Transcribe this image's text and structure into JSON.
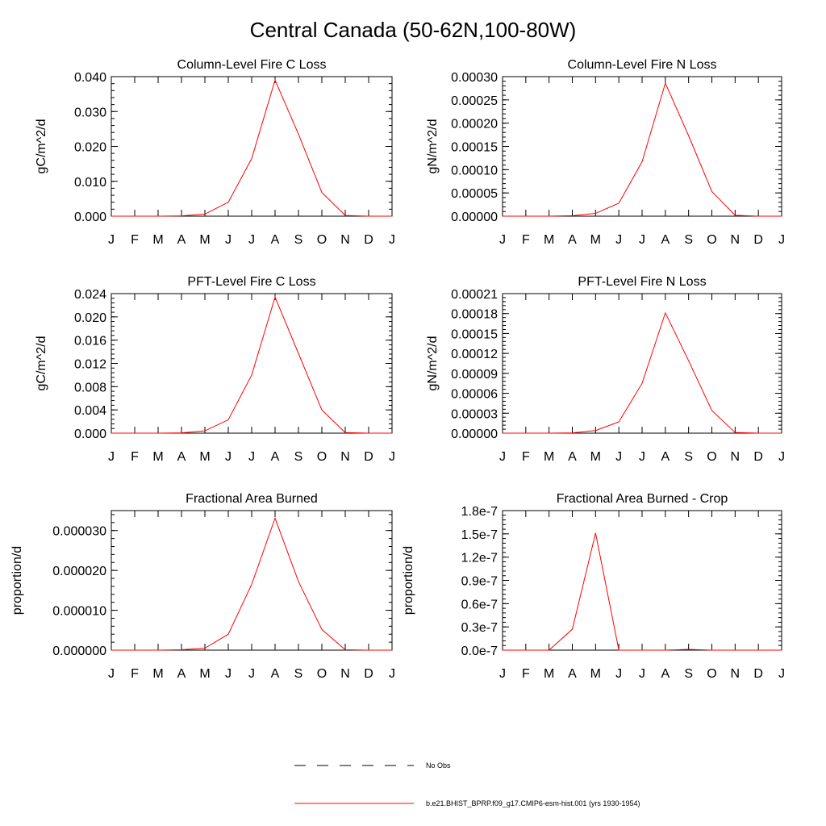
{
  "title": "Central Canada (50-62N,100-80W)",
  "months": [
    "J",
    "F",
    "M",
    "A",
    "M",
    "J",
    "J",
    "A",
    "S",
    "O",
    "N",
    "D",
    "J"
  ],
  "colors": {
    "model": "#ff0000",
    "obs": "#000000",
    "axis": "#000000"
  },
  "legend": {
    "obs_label": "No Obs",
    "model_label": "b.e21.BHIST_BPRP.f09_g17.CMIP6-esm-hist.001 (yrs 1930-1954)"
  },
  "chart_data": [
    {
      "type": "line",
      "title": "Column-Level Fire C Loss",
      "ylabel": "gC/m^2/d",
      "ylim": [
        0,
        0.04
      ],
      "yticks": [
        "0.000",
        "0.010",
        "0.020",
        "0.030",
        "0.040"
      ],
      "ytick_values": [
        0,
        0.01,
        0.02,
        0.03,
        0.04
      ],
      "x": [
        "J",
        "F",
        "M",
        "A",
        "M",
        "J",
        "J",
        "A",
        "S",
        "O",
        "N",
        "D",
        "J"
      ],
      "series": [
        {
          "name": "b.e21.BHIST_BPRP.f09_g17.CMIP6-esm-hist.001 (yrs 1930-1954)",
          "values": [
            0,
            0,
            0,
            0.0001,
            0.0006,
            0.004,
            0.0165,
            0.039,
            0.0235,
            0.0068,
            0.0002,
            0,
            0
          ]
        }
      ]
    },
    {
      "type": "line",
      "title": "Column-Level Fire N Loss",
      "ylabel": "gN/m^2/d",
      "ylim": [
        0,
        0.0003
      ],
      "yticks": [
        "0.00000",
        "0.00005",
        "0.00010",
        "0.00015",
        "0.00020",
        "0.00025",
        "0.00030"
      ],
      "ytick_values": [
        0,
        5e-05,
        0.0001,
        0.00015,
        0.0002,
        0.00025,
        0.0003
      ],
      "x": [
        "J",
        "F",
        "M",
        "A",
        "M",
        "J",
        "J",
        "A",
        "S",
        "O",
        "N",
        "D",
        "J"
      ],
      "series": [
        {
          "name": "b.e21.BHIST_BPRP.f09_g17.CMIP6-esm-hist.001 (yrs 1930-1954)",
          "values": [
            0,
            0,
            0,
            1e-06,
            6e-06,
            2.8e-05,
            0.000117,
            0.000286,
            0.000173,
            5.3e-05,
            2e-06,
            0,
            0
          ]
        }
      ]
    },
    {
      "type": "line",
      "title": "PFT-Level Fire C Loss",
      "ylabel": "gC/m^2/d",
      "ylim": [
        0,
        0.024
      ],
      "yticks": [
        "0.000",
        "0.004",
        "0.008",
        "0.012",
        "0.016",
        "0.020",
        "0.024"
      ],
      "ytick_values": [
        0,
        0.004,
        0.008,
        0.012,
        0.016,
        0.02,
        0.024
      ],
      "x": [
        "J",
        "F",
        "M",
        "A",
        "M",
        "J",
        "J",
        "A",
        "S",
        "O",
        "N",
        "D",
        "J"
      ],
      "series": [
        {
          "name": "b.e21.BHIST_BPRP.f09_g17.CMIP6-esm-hist.001 (yrs 1930-1954)",
          "values": [
            0,
            0,
            0,
            5e-05,
            0.0004,
            0.0023,
            0.01,
            0.0234,
            0.0137,
            0.004,
            0.0001,
            0,
            0
          ]
        }
      ]
    },
    {
      "type": "line",
      "title": "PFT-Level Fire N Loss",
      "ylabel": "gN/m^2/d",
      "ylim": [
        0,
        0.00021
      ],
      "yticks": [
        "0.00000",
        "0.00003",
        "0.00006",
        "0.00009",
        "0.00012",
        "0.00015",
        "0.00018",
        "0.00021"
      ],
      "ytick_values": [
        0,
        3e-05,
        6e-05,
        9e-05,
        0.00012,
        0.00015,
        0.00018,
        0.00021
      ],
      "x": [
        "J",
        "F",
        "M",
        "A",
        "M",
        "J",
        "J",
        "A",
        "S",
        "O",
        "N",
        "D",
        "J"
      ],
      "series": [
        {
          "name": "b.e21.BHIST_BPRP.f09_g17.CMIP6-esm-hist.001 (yrs 1930-1954)",
          "values": [
            0,
            0,
            0,
            5e-07,
            4e-06,
            1.7e-05,
            7.5e-05,
            0.000181,
            0.000109,
            3.4e-05,
            1e-06,
            0,
            0
          ]
        }
      ]
    },
    {
      "type": "line",
      "title": "Fractional Area Burned",
      "ylabel": "proportion/d",
      "ylim": [
        0,
        3.5e-05
      ],
      "yticks": [
        "0.000000",
        "0.000010",
        "0.000020",
        "0.000030"
      ],
      "ytick_values": [
        0,
        1e-05,
        2e-05,
        3e-05
      ],
      "x": [
        "J",
        "F",
        "M",
        "A",
        "M",
        "J",
        "J",
        "A",
        "S",
        "O",
        "N",
        "D",
        "J"
      ],
      "series": [
        {
          "name": "b.e21.BHIST_BPRP.f09_g17.CMIP6-esm-hist.001 (yrs 1930-1954)",
          "values": [
            0,
            0,
            0,
            1e-07,
            5e-07,
            4e-06,
            1.65e-05,
            3.31e-05,
            1.72e-05,
            5.2e-06,
            1e-07,
            0,
            0
          ]
        }
      ]
    },
    {
      "type": "line",
      "title": "Fractional Area Burned - Crop",
      "ylabel": "proportion/d",
      "ylim": [
        0,
        1.8e-07
      ],
      "yticks": [
        "0.0e-7",
        "0.3e-7",
        "0.6e-7",
        "0.9e-7",
        "1.2e-7",
        "1.5e-7",
        "1.8e-7"
      ],
      "ytick_values": [
        0,
        3e-08,
        6e-08,
        9e-08,
        1.2e-07,
        1.5e-07,
        1.8e-07
      ],
      "x": [
        "J",
        "F",
        "M",
        "A",
        "M",
        "J",
        "J",
        "A",
        "S",
        "O",
        "N",
        "D",
        "J"
      ],
      "series": [
        {
          "name": "b.e21.BHIST_BPRP.f09_g17.CMIP6-esm-hist.001 (yrs 1930-1954)",
          "values": [
            0,
            0,
            0,
            2.7e-08,
            1.51e-07,
            0,
            0,
            0,
            1e-09,
            0,
            0,
            0,
            0
          ]
        }
      ]
    }
  ]
}
